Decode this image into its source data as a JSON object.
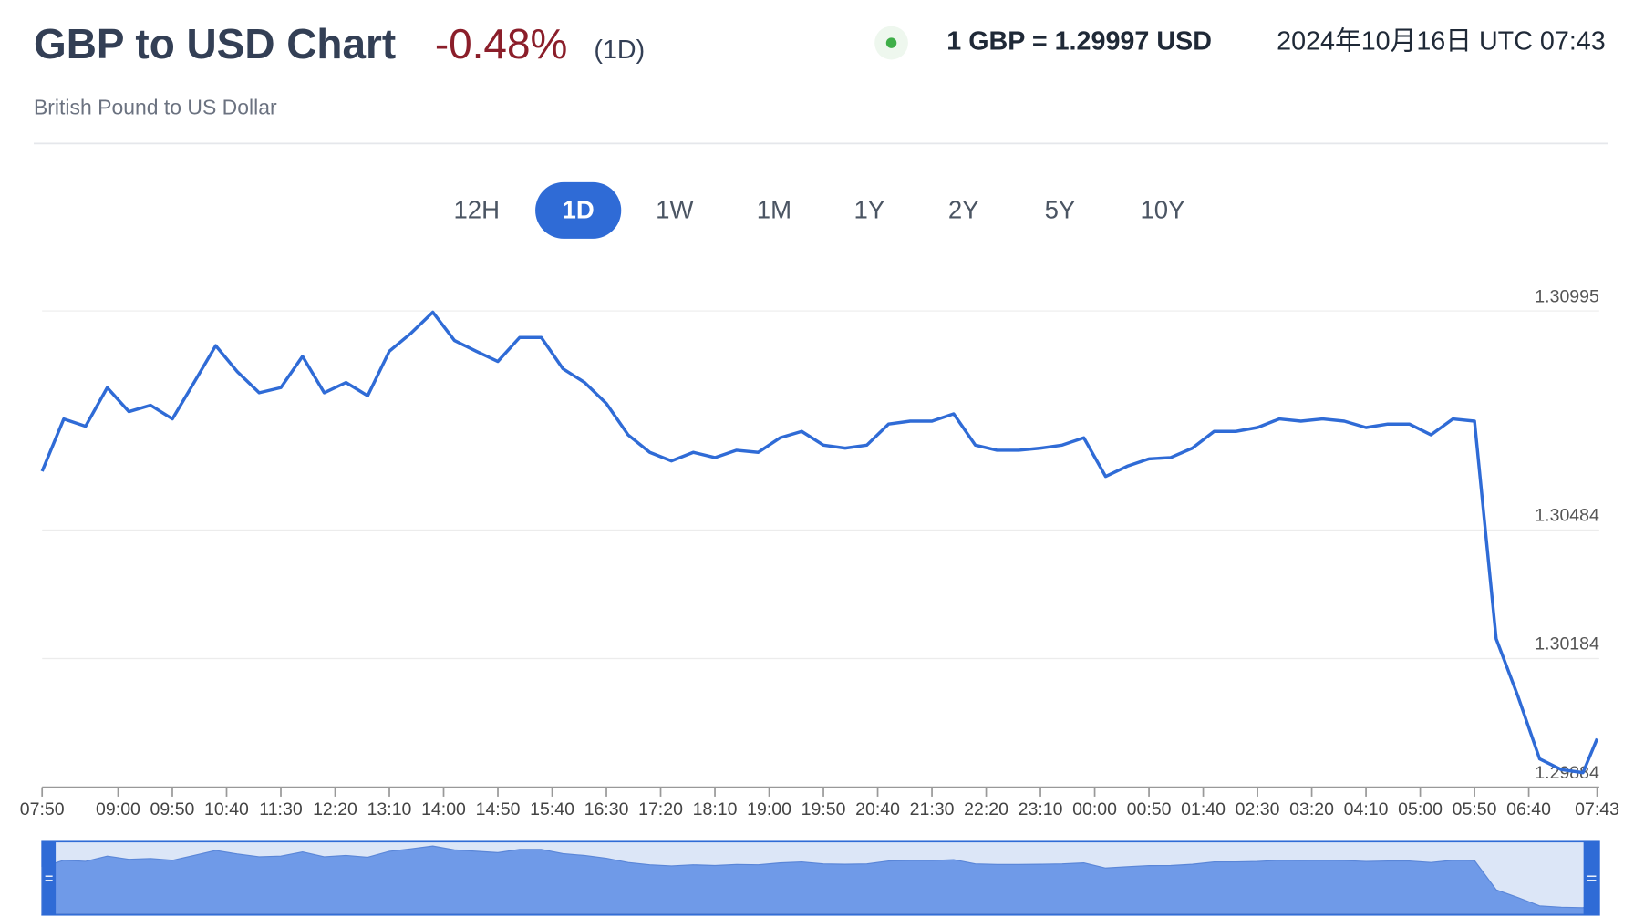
{
  "chart_data": {
    "type": "line",
    "title": "GBP to USD Chart",
    "change": "-0.48%",
    "period": "(1D)",
    "subtitle": "British Pound to US Dollar",
    "quote": "1 GBP = 1.29997 USD",
    "timestamp": "2024年10月16日 UTC 07:43",
    "ranges": [
      "12H",
      "1D",
      "1W",
      "1M",
      "1Y",
      "2Y",
      "5Y",
      "10Y"
    ],
    "selected_range": "1D",
    "color": "#2f6bd6",
    "grid": true,
    "x": [
      "07:50",
      "08:10",
      "08:30",
      "08:50",
      "09:10",
      "09:30",
      "09:50",
      "10:10",
      "10:30",
      "10:50",
      "11:10",
      "11:30",
      "11:50",
      "12:10",
      "12:30",
      "12:50",
      "13:10",
      "13:30",
      "13:50",
      "14:10",
      "14:30",
      "14:50",
      "15:10",
      "15:30",
      "15:50",
      "16:10",
      "16:30",
      "16:50",
      "17:10",
      "17:30",
      "17:50",
      "18:10",
      "18:30",
      "18:50",
      "19:10",
      "19:30",
      "19:50",
      "20:10",
      "20:30",
      "20:50",
      "21:10",
      "21:30",
      "21:50",
      "22:10",
      "22:30",
      "22:50",
      "23:10",
      "23:30",
      "23:50",
      "00:10",
      "00:30",
      "00:50",
      "01:10",
      "01:30",
      "01:50",
      "02:10",
      "02:30",
      "02:50",
      "03:10",
      "03:30",
      "03:50",
      "04:10",
      "04:30",
      "04:50",
      "05:10",
      "05:30",
      "05:50",
      "06:10",
      "06:30",
      "06:50",
      "07:10",
      "07:30",
      "07:43"
    ],
    "values": [
      1.30621,
      1.30743,
      1.30726,
      1.30816,
      1.3076,
      1.30775,
      1.30743,
      1.30828,
      1.30914,
      1.30853,
      1.30804,
      1.30816,
      1.30889,
      1.30804,
      1.30828,
      1.30797,
      1.30901,
      1.30943,
      1.30992,
      1.30926,
      1.30901,
      1.30877,
      1.30933,
      1.30933,
      1.3086,
      1.30828,
      1.30779,
      1.30706,
      1.30665,
      1.30645,
      1.30665,
      1.30653,
      1.3067,
      1.30665,
      1.30699,
      1.30714,
      1.30682,
      1.30675,
      1.30682,
      1.30731,
      1.30738,
      1.30738,
      1.30755,
      1.30682,
      1.3067,
      1.3067,
      1.30675,
      1.30682,
      1.30699,
      1.30609,
      1.30633,
      1.3065,
      1.30653,
      1.30675,
      1.30714,
      1.30714,
      1.30723,
      1.30743,
      1.30738,
      1.30743,
      1.30738,
      1.30723,
      1.30731,
      1.30731,
      1.30706,
      1.30743,
      1.30738,
      1.3023,
      1.30096,
      1.2995,
      1.29925,
      1.29918,
      1.29997
    ],
    "ylim": [
      1.29884,
      1.30995
    ],
    "yticks": [
      1.29884,
      1.30184,
      1.30484,
      1.30995
    ],
    "xticks": [
      "07:50",
      "09:00",
      "09:50",
      "10:40",
      "11:30",
      "12:20",
      "13:10",
      "14:00",
      "14:50",
      "15:40",
      "16:30",
      "17:20",
      "18:10",
      "19:00",
      "19:50",
      "20:40",
      "21:30",
      "22:20",
      "23:10",
      "00:00",
      "00:50",
      "01:40",
      "02:30",
      "03:20",
      "04:10",
      "05:00",
      "05:50",
      "06:40",
      "07:43"
    ]
  }
}
